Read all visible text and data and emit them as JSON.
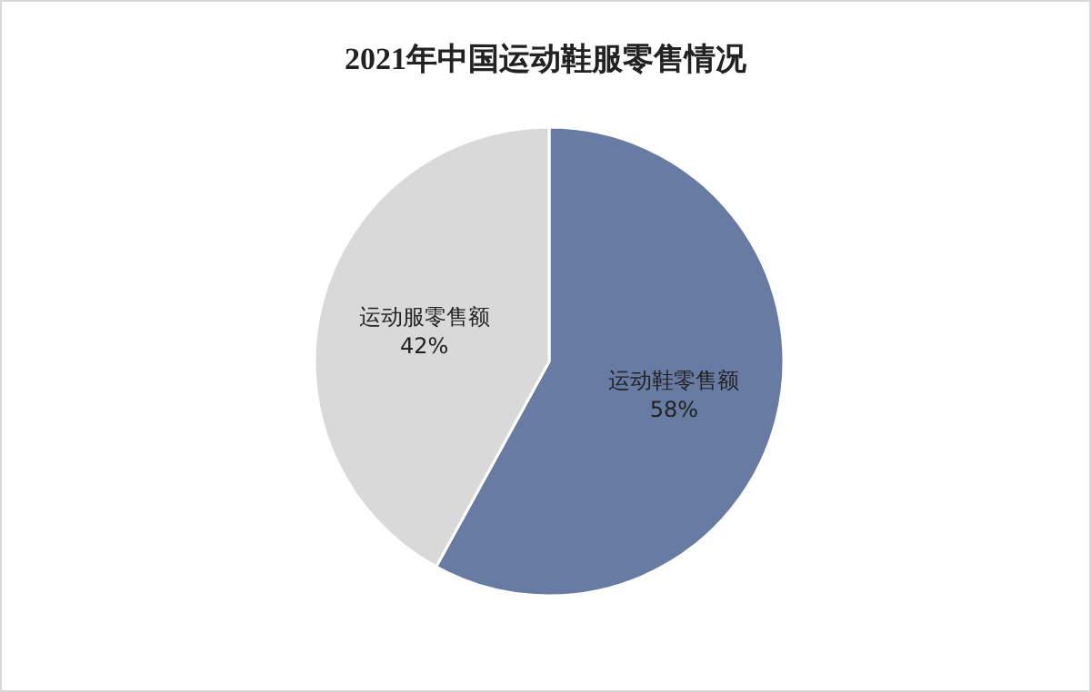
{
  "chart_data": {
    "type": "pie",
    "title": "2021年中国运动鞋服零售情况",
    "categories": [
      "运动鞋零售额",
      "运动服零售额"
    ],
    "values": [
      58,
      42
    ],
    "value_labels": [
      "58%",
      "42%"
    ],
    "colors": [
      "#687ca3",
      "#d9d9d9"
    ],
    "legend": false
  }
}
